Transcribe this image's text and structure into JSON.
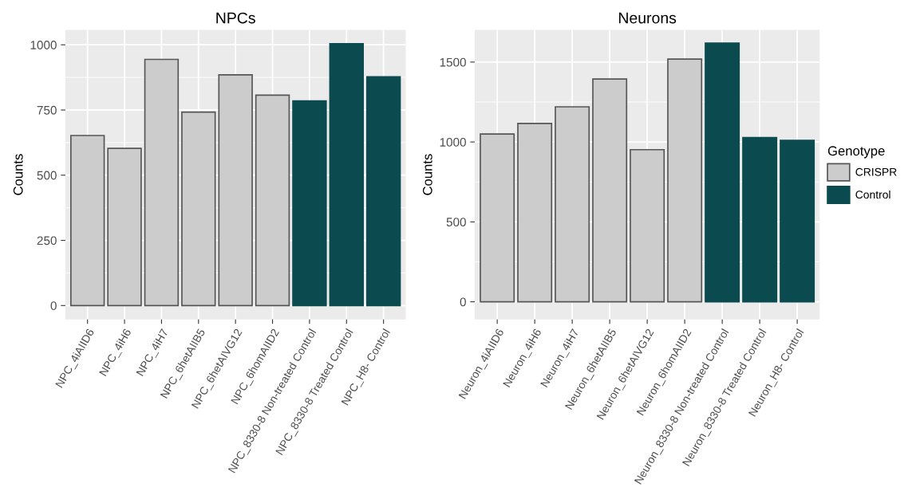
{
  "chart_data": [
    {
      "type": "bar",
      "title": "NPCs",
      "ylabel": "Counts",
      "categories": [
        "NPC_4iAIID6",
        "NPC_4iH6",
        "NPC_4iH7",
        "NPC_6hetAIIB5",
        "NPC_6hetAIVG12",
        "NPC_6homAIID2",
        "NPC_8330-8 Non-treated Control",
        "NPC_8330-8 Treated Control",
        "NPC_H8- Control"
      ],
      "series": [
        {
          "color": "#cccccc",
          "values": [
            652,
            603,
            944,
            742,
            885,
            807,
            null,
            null,
            null
          ]
        },
        {
          "color": "#0b4b50",
          "values": [
            null,
            null,
            null,
            null,
            null,
            null,
            785,
            1004,
            877
          ]
        }
      ],
      "ylim": [
        -53,
        1057
      ],
      "yticks": [
        0,
        250,
        500,
        750,
        1000
      ],
      "grid": true,
      "legend": false
    },
    {
      "type": "bar",
      "title": "Neurons",
      "ylabel": "Counts",
      "legend_title": "Genotype",
      "categories": [
        "Neuron_4iAIID6",
        "Neuron_4iH6",
        "Neuron_4iH7",
        "Neuron_6hetAIIB5",
        "Neuron_6hetAIVG12",
        "Neuron_6homAIID2",
        "Neuron_8330-8 Non-treated Control",
        "Neuron_8330-8 Treated Control",
        "Neuron_H8- Control"
      ],
      "series": [
        {
          "name": "CRISPR",
          "color": "#cccccc",
          "values": [
            1050,
            1116,
            1220,
            1394,
            952,
            1519,
            null,
            null,
            null
          ]
        },
        {
          "name": "Control",
          "color": "#0b4b50",
          "values": [
            null,
            null,
            null,
            null,
            null,
            null,
            1618,
            1027,
            1010
          ]
        }
      ],
      "ylim": [
        -110,
        1701
      ],
      "yticks": [
        0,
        500,
        1000,
        1500
      ],
      "grid": true,
      "legend": "right"
    }
  ]
}
